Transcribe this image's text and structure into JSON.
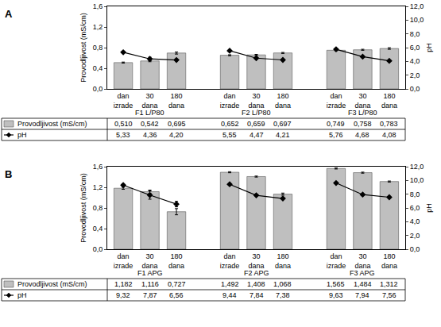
{
  "chart_data": [
    {
      "type": "bar",
      "panel": "A",
      "categories": [
        "dan izrade",
        "30 dana",
        "180 dana",
        null,
        "dan izrade",
        "30 dana",
        "180 dana",
        null,
        "dan izrade",
        "30 dana",
        "180 dana"
      ],
      "groups": [
        "F1 L/P80",
        "F2 L/P80",
        "F3 L/P80"
      ],
      "ylabel": "Provodljivost (mS/cm)",
      "y2label": "pH",
      "ylim": [
        0,
        1.6
      ],
      "yticks": [
        {
          "value": 0,
          "label": "0,0"
        },
        {
          "value": 0.4,
          "label": "0,4"
        },
        {
          "value": 0.8,
          "label": "0,8"
        },
        {
          "value": 1.2,
          "label": "1,2"
        },
        {
          "value": 1.6,
          "label": "1,6"
        }
      ],
      "y2lim": [
        0,
        12
      ],
      "y2ticks": [
        {
          "value": 0,
          "label": "0,0"
        },
        {
          "value": 2,
          "label": "2,0"
        },
        {
          "value": 4,
          "label": "4,0"
        },
        {
          "value": 6,
          "label": "6,0"
        },
        {
          "value": 8,
          "label": "8,0"
        },
        {
          "value": 10,
          "label": "10,0"
        },
        {
          "value": 12,
          "label": "12,0"
        }
      ],
      "grid": false,
      "series": [
        {
          "name": "Provodljivost (mS/cm)",
          "type": "bar",
          "color": "#bfbfbf",
          "values": [
            0.51,
            0.542,
            0.695,
            null,
            0.652,
            0.659,
            0.697,
            null,
            0.749,
            0.758,
            0.783
          ],
          "value_labels": [
            "0,510",
            "0,542",
            "0,695",
            null,
            "0,652",
            "0,659",
            "0,697",
            null,
            "0,749",
            "0,758",
            "0,783"
          ],
          "error": [
            0.01,
            0.015,
            0.02,
            null,
            0.01,
            0.01,
            0.01,
            null,
            0.01,
            0.01,
            0.015
          ]
        },
        {
          "name": "pH",
          "type": "line",
          "axis": "y2",
          "color": "#000000",
          "marker": "diamond",
          "values": [
            5.33,
            4.36,
            4.2,
            null,
            5.55,
            4.47,
            4.21,
            null,
            5.76,
            4.68,
            4.08
          ],
          "value_labels": [
            "5,33",
            "4,36",
            "4,20",
            null,
            "5,55",
            "4,47",
            "4,21",
            null,
            "5,76",
            "4,68",
            "4,08"
          ],
          "error": [
            0.05,
            0.25,
            0.1,
            null,
            0.05,
            0.1,
            0.05,
            null,
            0.05,
            0.05,
            0.05
          ]
        }
      ]
    },
    {
      "type": "bar",
      "panel": "B",
      "categories": [
        "dan izrade",
        "30 dana",
        "180 dana",
        null,
        "dan izrade",
        "30 dana",
        "180 dana",
        null,
        "dan izrade",
        "30 dana",
        "180 dana"
      ],
      "groups": [
        "F1 APG",
        "F2 APG",
        "F3 APG"
      ],
      "ylabel": "Provodljivost (mS/cm)",
      "y2label": "pH",
      "ylim": [
        0,
        1.6
      ],
      "yticks": [
        {
          "value": 0,
          "label": "0,0"
        },
        {
          "value": 0.4,
          "label": "0,4"
        },
        {
          "value": 0.8,
          "label": "0,8"
        },
        {
          "value": 1.2,
          "label": "1,2"
        },
        {
          "value": 1.6,
          "label": "1,6"
        }
      ],
      "y2lim": [
        0,
        12
      ],
      "y2ticks": [
        {
          "value": 0,
          "label": "0,0"
        },
        {
          "value": 2,
          "label": "2,0"
        },
        {
          "value": 4,
          "label": "4,0"
        },
        {
          "value": 6,
          "label": "6,0"
        },
        {
          "value": 8,
          "label": "8,0"
        },
        {
          "value": 10,
          "label": "10,0"
        },
        {
          "value": 12,
          "label": "12,0"
        }
      ],
      "grid": false,
      "series": [
        {
          "name": "Provodljivost (mS/cm)",
          "type": "bar",
          "color": "#bfbfbf",
          "values": [
            1.182,
            1.116,
            0.727,
            null,
            1.492,
            1.408,
            1.068,
            null,
            1.565,
            1.484,
            1.312
          ],
          "value_labels": [
            "1,182",
            "1,116",
            "0,727",
            null,
            "1,492",
            "1,408",
            "1,068",
            null,
            "1,565",
            "1,484",
            "1,312"
          ],
          "error": [
            0.02,
            0.03,
            0.06,
            null,
            0.01,
            0.01,
            0.02,
            null,
            0.01,
            0.01,
            0.01
          ]
        },
        {
          "name": "pH",
          "type": "line",
          "axis": "y2",
          "color": "#000000",
          "marker": "diamond",
          "values": [
            9.32,
            7.87,
            6.56,
            null,
            9.44,
            7.84,
            7.38,
            null,
            9.63,
            7.94,
            7.56
          ],
          "value_labels": [
            "9,32",
            "7,87",
            "6,56",
            null,
            "9,44",
            "7,84",
            "7,38",
            null,
            "9,63",
            "7,94",
            "7,56"
          ],
          "error": [
            0.2,
            0.6,
            0.4,
            null,
            0.1,
            0.1,
            0.1,
            null,
            0.1,
            0.1,
            0.1
          ]
        }
      ]
    }
  ]
}
